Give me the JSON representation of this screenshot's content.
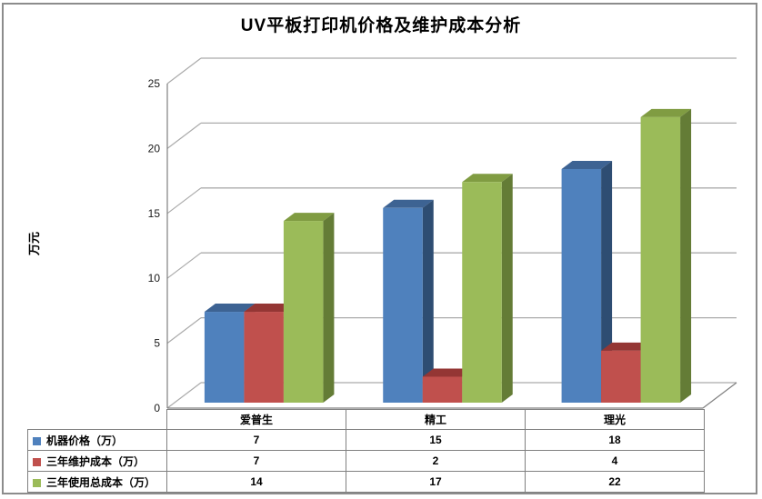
{
  "chart_data": {
    "type": "bar",
    "variant": "3d-column",
    "title": "UV平板打印机价格及维护成本分析",
    "ylabel": "万元",
    "xlabel": "",
    "categories": [
      "爱普生",
      "精工",
      "理光"
    ],
    "series": [
      {
        "name": "机器价格（万）",
        "values": [
          7,
          15,
          18
        ],
        "color": "#4F81BD",
        "top_color": "#3D6393",
        "side_color": "#2E4D72"
      },
      {
        "name": "三年维护成本（万）",
        "values": [
          7,
          2,
          4
        ],
        "color": "#C0504D",
        "top_color": "#943634",
        "side_color": "#7B2D2B"
      },
      {
        "name": "三年使用总成本（万）",
        "values": [
          14,
          17,
          22
        ],
        "color": "#9BBB59",
        "top_color": "#809C42",
        "side_color": "#647C36"
      }
    ],
    "ylim": [
      0,
      25
    ],
    "ytick_step": 5,
    "yticks": [
      0,
      5,
      10,
      15,
      20,
      25
    ],
    "grid": true,
    "legend_position": "bottom-data-table",
    "colors": {
      "gridline": "#ABABAB",
      "axis": "#808080",
      "table_border": "#808080",
      "frame_border": "#8C8C8C",
      "background": "#FFFFFF",
      "text": "#000000"
    }
  }
}
